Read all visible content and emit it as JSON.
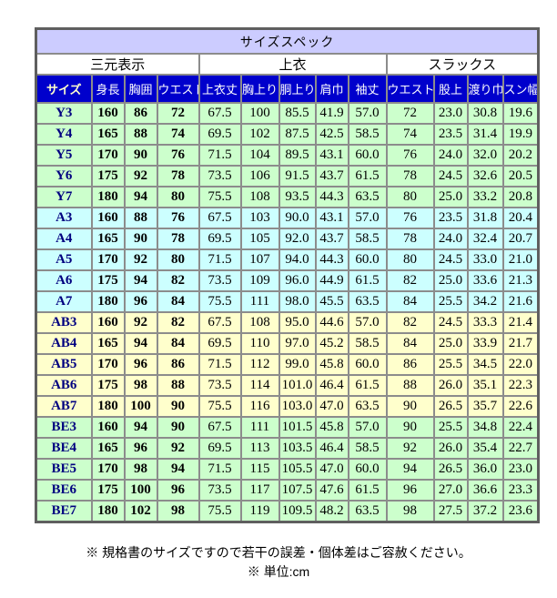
{
  "title": "サイズスペック",
  "colors": {
    "title_bg": "#ccccff",
    "header_bg": "#0000cc",
    "header_text": "#ffffff",
    "size_header_text": "#ffffcc",
    "size_label_text": "#000080",
    "group_y_bg": "#ccffcc",
    "group_a_bg": "#ccffff",
    "group_ab_bg": "#ffffcc",
    "group_be_bg": "#ccffcc",
    "border": "#8c8c8c"
  },
  "table": {
    "group_headers": [
      {
        "label": "三元表示",
        "span": 4
      },
      {
        "label": "上衣",
        "span": 5
      },
      {
        "label": "スラックス",
        "span": 4
      }
    ],
    "columns": [
      "サイズ",
      "身長",
      "胸囲",
      "ウエスト",
      "上衣丈",
      "胸上り",
      "胴上り",
      "肩巾",
      "袖丈",
      "ウエスト",
      "股上",
      "渡り巾",
      "スン幅"
    ],
    "row_groups": [
      {
        "name": "Y",
        "bg": "#ccffcc",
        "rows": [
          {
            "size": "Y3",
            "values": [
              "160",
              "86",
              "72",
              "67.5",
              "100",
              "85.5",
              "41.9",
              "57.0",
              "72",
              "23.0",
              "30.8",
              "19.6"
            ]
          },
          {
            "size": "Y4",
            "values": [
              "165",
              "88",
              "74",
              "69.5",
              "102",
              "87.5",
              "42.5",
              "58.5",
              "74",
              "23.5",
              "31.4",
              "19.9"
            ]
          },
          {
            "size": "Y5",
            "values": [
              "170",
              "90",
              "76",
              "71.5",
              "104",
              "89.5",
              "43.1",
              "60.0",
              "76",
              "24.0",
              "32.0",
              "20.2"
            ]
          },
          {
            "size": "Y6",
            "values": [
              "175",
              "92",
              "78",
              "73.5",
              "106",
              "91.5",
              "43.7",
              "61.5",
              "78",
              "24.5",
              "32.6",
              "20.5"
            ]
          },
          {
            "size": "Y7",
            "values": [
              "180",
              "94",
              "80",
              "75.5",
              "108",
              "93.5",
              "44.3",
              "63.5",
              "80",
              "25.0",
              "33.2",
              "20.8"
            ]
          }
        ]
      },
      {
        "name": "A",
        "bg": "#ccffff",
        "rows": [
          {
            "size": "A3",
            "values": [
              "160",
              "88",
              "76",
              "67.5",
              "103",
              "90.0",
              "43.1",
              "57.0",
              "76",
              "23.5",
              "31.8",
              "20.4"
            ]
          },
          {
            "size": "A4",
            "values": [
              "165",
              "90",
              "78",
              "69.5",
              "105",
              "92.0",
              "43.7",
              "58.5",
              "78",
              "24.0",
              "32.4",
              "20.7"
            ]
          },
          {
            "size": "A5",
            "values": [
              "170",
              "92",
              "80",
              "71.5",
              "107",
              "94.0",
              "44.3",
              "60.0",
              "80",
              "24.5",
              "33.0",
              "21.0"
            ]
          },
          {
            "size": "A6",
            "values": [
              "175",
              "94",
              "82",
              "73.5",
              "109",
              "96.0",
              "44.9",
              "61.5",
              "82",
              "25.0",
              "33.6",
              "21.3"
            ]
          },
          {
            "size": "A7",
            "values": [
              "180",
              "96",
              "84",
              "75.5",
              "111",
              "98.0",
              "45.5",
              "63.5",
              "84",
              "25.5",
              "34.2",
              "21.6"
            ]
          }
        ]
      },
      {
        "name": "AB",
        "bg": "#ffffcc",
        "rows": [
          {
            "size": "AB3",
            "values": [
              "160",
              "92",
              "82",
              "67.5",
              "108",
              "95.0",
              "44.6",
              "57.0",
              "82",
              "24.5",
              "33.3",
              "21.4"
            ]
          },
          {
            "size": "AB4",
            "values": [
              "165",
              "94",
              "84",
              "69.5",
              "110",
              "97.0",
              "45.2",
              "58.5",
              "84",
              "25.0",
              "33.9",
              "21.7"
            ]
          },
          {
            "size": "AB5",
            "values": [
              "170",
              "96",
              "86",
              "71.5",
              "112",
              "99.0",
              "45.8",
              "60.0",
              "86",
              "25.5",
              "34.5",
              "22.0"
            ]
          },
          {
            "size": "AB6",
            "values": [
              "175",
              "98",
              "88",
              "73.5",
              "114",
              "101.0",
              "46.4",
              "61.5",
              "88",
              "26.0",
              "35.1",
              "22.3"
            ]
          },
          {
            "size": "AB7",
            "values": [
              "180",
              "100",
              "90",
              "75.5",
              "116",
              "103.0",
              "47.0",
              "63.5",
              "90",
              "26.5",
              "35.7",
              "22.6"
            ]
          }
        ]
      },
      {
        "name": "BE",
        "bg": "#ccffcc",
        "rows": [
          {
            "size": "BE3",
            "values": [
              "160",
              "94",
              "90",
              "67.5",
              "111",
              "101.5",
              "45.8",
              "57.0",
              "90",
              "25.5",
              "34.8",
              "22.4"
            ]
          },
          {
            "size": "BE4",
            "values": [
              "165",
              "96",
              "92",
              "69.5",
              "113",
              "103.5",
              "46.4",
              "58.5",
              "92",
              "26.0",
              "35.4",
              "22.7"
            ]
          },
          {
            "size": "BE5",
            "values": [
              "170",
              "98",
              "94",
              "71.5",
              "115",
              "105.5",
              "47.0",
              "60.0",
              "94",
              "26.5",
              "36.0",
              "23.0"
            ]
          },
          {
            "size": "BE6",
            "values": [
              "175",
              "100",
              "96",
              "73.5",
              "117",
              "107.5",
              "47.6",
              "61.5",
              "96",
              "27.0",
              "36.6",
              "23.3"
            ]
          },
          {
            "size": "BE7",
            "values": [
              "180",
              "102",
              "98",
              "75.5",
              "119",
              "109.5",
              "48.2",
              "63.5",
              "98",
              "27.5",
              "37.2",
              "23.6"
            ]
          }
        ]
      }
    ]
  },
  "footer": {
    "line1": "※ 規格書のサイズですので若干の誤差・個体差はご容赦ください。",
    "line2": "※ 単位:cm"
  }
}
